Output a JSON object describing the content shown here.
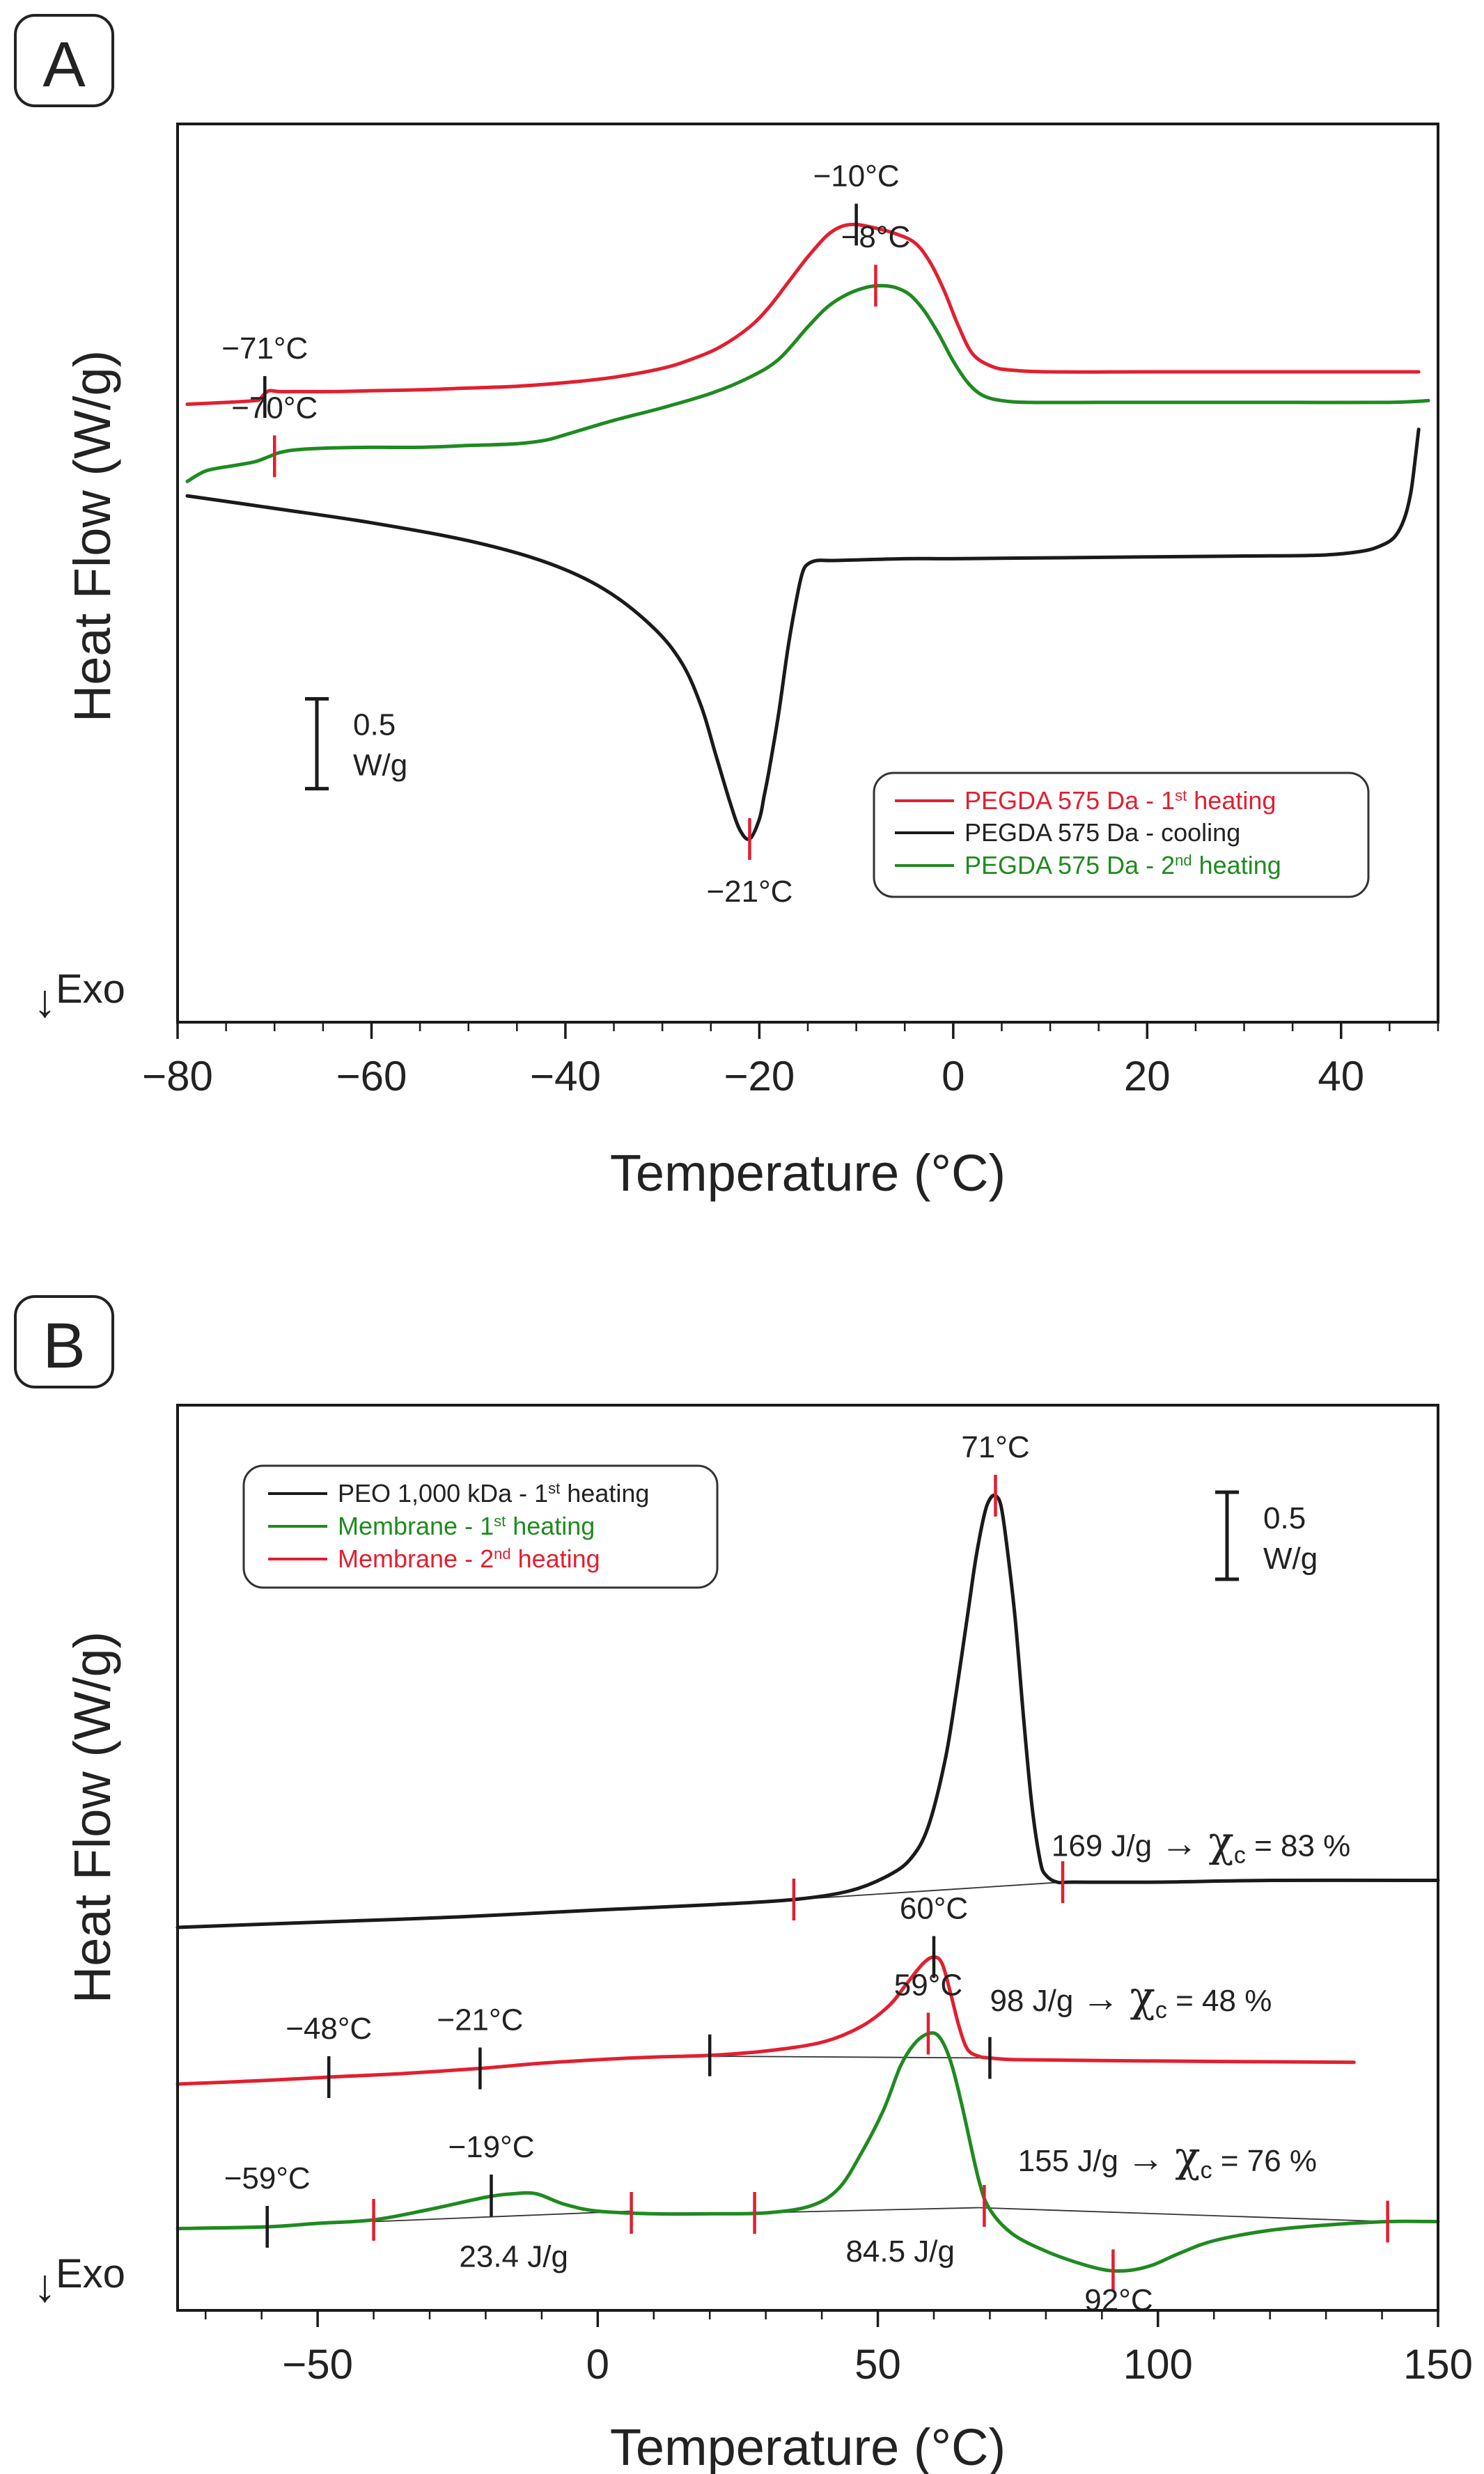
{
  "colors": {
    "red": "#e02030",
    "black": "#1a1a1a",
    "green": "#1f8a1f"
  },
  "chart_data": [
    {
      "id": "A",
      "type": "line",
      "panel_label": "A",
      "xlabel": "Temperature (°C)",
      "ylabel": "Heat Flow (W/g)",
      "exo_label": "Exo",
      "xlim": [
        -80,
        50
      ],
      "xticks": [
        -80,
        -60,
        -40,
        -20,
        0,
        20,
        40
      ],
      "xtick_labels": [
        "−80",
        "−60",
        "−40",
        "−20",
        "0",
        "20",
        "40"
      ],
      "ylim": [
        -1.6,
        3.4
      ],
      "scale_bar": {
        "value": 0.5,
        "label_value": "0.5",
        "label_unit": "W/g",
        "y0": -0.3
      },
      "series": [
        {
          "name": "PEGDA 575 Da - 1st heating",
          "legend_main": "PEGDA 575 Da - 1",
          "legend_sup": "st",
          "legend_tail": " heating",
          "color": "red",
          "x": [
            -79,
            -75,
            -72,
            -71.5,
            -71,
            -70.5,
            -69.5,
            -68,
            -64,
            -60,
            -55,
            -50,
            -45,
            -40,
            -35,
            -30,
            -27,
            -24,
            -21,
            -19,
            -17,
            -15,
            -13,
            -11.5,
            -10,
            -8,
            -6,
            -4,
            -2.5,
            -1,
            0.5,
            2,
            4,
            6,
            10,
            20,
            30,
            40,
            48
          ],
          "values": [
            1.84,
            1.85,
            1.86,
            1.87,
            1.9,
            1.915,
            1.91,
            1.91,
            1.91,
            1.915,
            1.92,
            1.93,
            1.94,
            1.96,
            1.99,
            2.04,
            2.09,
            2.16,
            2.27,
            2.38,
            2.52,
            2.66,
            2.78,
            2.83,
            2.84,
            2.82,
            2.79,
            2.74,
            2.64,
            2.48,
            2.28,
            2.12,
            2.05,
            2.03,
            2.02,
            2.02,
            2.02,
            2.02,
            2.02
          ]
        },
        {
          "name": "PEGDA 575 Da - cooling",
          "legend_main": "PEGDA 575 Da - cooling",
          "legend_sup": "",
          "legend_tail": "",
          "color": "black",
          "x": [
            -79,
            -70,
            -60,
            -50,
            -42,
            -36,
            -31,
            -28,
            -26,
            -24.5,
            -23,
            -22,
            -21,
            -20,
            -19.5,
            -19,
            -18,
            -17,
            -16,
            -15.5,
            -15,
            -14,
            -12,
            -5,
            0,
            10,
            20,
            30,
            38,
            42,
            44,
            45.5,
            46.5,
            47.2,
            47.7,
            48
          ],
          "values": [
            1.33,
            1.26,
            1.18,
            1.08,
            0.96,
            0.81,
            0.6,
            0.4,
            0.16,
            -0.11,
            -0.38,
            -0.53,
            -0.58,
            -0.47,
            -0.34,
            -0.2,
            0.12,
            0.5,
            0.8,
            0.91,
            0.95,
            0.97,
            0.97,
            0.98,
            0.98,
            0.985,
            0.99,
            0.995,
            1.0,
            1.02,
            1.05,
            1.1,
            1.2,
            1.35,
            1.56,
            1.7
          ]
        },
        {
          "name": "PEGDA 575 Da - 2nd heating",
          "legend_main": "PEGDA 575 Da - 2",
          "legend_sup": "nd",
          "legend_tail": " heating",
          "color": "green",
          "x": [
            -79,
            -77,
            -74,
            -72,
            -70.5,
            -69.5,
            -68,
            -65,
            -60,
            -55,
            -50,
            -45,
            -42,
            -40,
            -35,
            -30,
            -25,
            -21,
            -18,
            -15,
            -13,
            -11,
            -9,
            -7.5,
            -6,
            -4.5,
            -3,
            -1.5,
            0,
            1.5,
            3,
            5,
            8,
            15,
            25,
            35,
            45,
            49
          ],
          "values": [
            1.41,
            1.47,
            1.5,
            1.52,
            1.55,
            1.57,
            1.585,
            1.595,
            1.6,
            1.6,
            1.61,
            1.62,
            1.64,
            1.67,
            1.75,
            1.82,
            1.9,
            1.99,
            2.09,
            2.27,
            2.38,
            2.45,
            2.49,
            2.5,
            2.49,
            2.45,
            2.36,
            2.23,
            2.08,
            1.96,
            1.89,
            1.86,
            1.85,
            1.85,
            1.85,
            1.85,
            1.85,
            1.86
          ]
        }
      ],
      "annotations": [
        {
          "text": "−10°C",
          "x": -10,
          "y": 2.84,
          "color": "black",
          "pos": "above"
        },
        {
          "text": "−71°C",
          "x": -71,
          "y": 1.88,
          "color": "black",
          "pos": "above"
        },
        {
          "text": "−8°C",
          "x": -8,
          "y": 2.5,
          "color": "red",
          "pos": "above"
        },
        {
          "text": "−70°C",
          "x": -70,
          "y": 1.55,
          "color": "red",
          "pos": "above"
        },
        {
          "text": "−21°C",
          "x": -21,
          "y": -0.58,
          "color": "red",
          "pos": "below"
        }
      ],
      "legend_position": "lower-right"
    },
    {
      "id": "B",
      "type": "line",
      "panel_label": "B",
      "xlabel": "Temperature (°C)",
      "ylabel": "Heat Flow (W/g)",
      "exo_label": "Exo",
      "xlim": [
        -75,
        150
      ],
      "xticks": [
        -50,
        0,
        50,
        100,
        150
      ],
      "xtick_labels": [
        "−50",
        "0",
        "50",
        "100",
        "150"
      ],
      "ylim": [
        -2.2,
        3.0
      ],
      "scale_bar": {
        "value": 0.5,
        "label_value": "0.5",
        "label_unit": "W/g",
        "y0": 2.0
      },
      "series": [
        {
          "name": "PEO 1,000 kDa - 1st heating",
          "legend_main": "PEO 1,000 kDa - 1",
          "legend_sup": "st",
          "legend_tail": " heating",
          "color": "black",
          "x": [
            -75,
            -50,
            -25,
            0,
            20,
            35,
            45,
            52,
            56,
            59,
            62,
            64,
            66,
            67.5,
            69,
            70,
            71,
            72,
            73,
            74.5,
            76,
            77.5,
            79,
            80,
            82,
            85,
            100,
            120,
            150
          ],
          "values": [
            0.0,
            0.03,
            0.06,
            0.1,
            0.13,
            0.16,
            0.21,
            0.3,
            0.4,
            0.58,
            0.96,
            1.35,
            1.79,
            2.12,
            2.37,
            2.46,
            2.48,
            2.42,
            2.2,
            1.78,
            1.21,
            0.7,
            0.38,
            0.3,
            0.26,
            0.26,
            0.26,
            0.27,
            0.27
          ]
        },
        {
          "name": "Membrane - 1st heating",
          "legend_main": "Membrane - 1",
          "legend_sup": "st",
          "legend_tail": " heating",
          "color": "green",
          "x": [
            -75,
            -59,
            -50,
            -40,
            -30,
            -20,
            -15,
            -11,
            -6,
            0,
            10,
            20,
            30,
            38,
            43,
            47,
            51,
            54,
            56.5,
            59,
            61,
            63,
            65,
            68,
            70,
            74,
            80,
            86,
            91,
            95,
            99,
            104,
            110,
            120,
            130,
            141,
            150
          ],
          "values": [
            -1.73,
            -1.72,
            -1.7,
            -1.68,
            -1.62,
            -1.55,
            -1.53,
            -1.53,
            -1.59,
            -1.63,
            -1.645,
            -1.645,
            -1.64,
            -1.6,
            -1.5,
            -1.3,
            -1.05,
            -0.8,
            -0.67,
            -0.61,
            -0.63,
            -0.77,
            -1.02,
            -1.45,
            -1.62,
            -1.76,
            -1.86,
            -1.93,
            -1.97,
            -1.97,
            -1.94,
            -1.87,
            -1.8,
            -1.74,
            -1.71,
            -1.69,
            -1.69
          ]
        },
        {
          "name": "Membrane - 2nd heating",
          "legend_main": "Membrane - 2",
          "legend_sup": "nd",
          "legend_tail": " heating",
          "color": "red",
          "x": [
            -75,
            -60,
            -48,
            -35,
            -21,
            -10,
            0,
            10,
            20,
            30,
            40,
            47,
            52,
            55,
            58,
            60,
            61.5,
            63,
            64.5,
            66,
            68,
            70,
            75,
            90,
            110,
            135
          ],
          "values": [
            -0.9,
            -0.88,
            -0.86,
            -0.84,
            -0.81,
            -0.78,
            -0.76,
            -0.745,
            -0.735,
            -0.71,
            -0.66,
            -0.57,
            -0.45,
            -0.33,
            -0.21,
            -0.17,
            -0.21,
            -0.38,
            -0.57,
            -0.7,
            -0.74,
            -0.75,
            -0.76,
            -0.765,
            -0.77,
            -0.775
          ]
        }
      ],
      "baselines": [
        {
          "x": [
            35,
            83
          ],
          "y": [
            0.16,
            0.26
          ]
        },
        {
          "x": [
            20,
            70
          ],
          "y": [
            -0.74,
            -0.75
          ]
        },
        {
          "x": [
            -40,
            6
          ],
          "y": [
            -1.69,
            -1.63
          ]
        },
        {
          "x": [
            28,
            68
          ],
          "y": [
            -1.64,
            -1.61
          ]
        },
        {
          "x": [
            68,
            141
          ],
          "y": [
            -1.61,
            -1.69
          ]
        }
      ],
      "markers": [
        {
          "x": 35,
          "y": 0.16,
          "color": "red"
        },
        {
          "x": 83,
          "y": 0.26,
          "color": "red"
        },
        {
          "x": 71,
          "y": 2.48,
          "color": "red"
        },
        {
          "x": -48,
          "y": -0.86,
          "color": "black"
        },
        {
          "x": -21,
          "y": -0.81,
          "color": "black"
        },
        {
          "x": 20,
          "y": -0.735,
          "color": "black"
        },
        {
          "x": 60,
          "y": -0.17,
          "color": "black"
        },
        {
          "x": 70,
          "y": -0.75,
          "color": "black"
        },
        {
          "x": -59,
          "y": -1.72,
          "color": "black"
        },
        {
          "x": -19,
          "y": -1.54,
          "color": "black"
        },
        {
          "x": -40,
          "y": -1.68,
          "color": "red"
        },
        {
          "x": 6,
          "y": -1.64,
          "color": "red"
        },
        {
          "x": 28,
          "y": -1.64,
          "color": "red"
        },
        {
          "x": 59,
          "y": -0.61,
          "color": "red"
        },
        {
          "x": 69,
          "y": -1.6,
          "color": "red"
        },
        {
          "x": 92,
          "y": -1.97,
          "color": "red"
        },
        {
          "x": 141,
          "y": -1.69,
          "color": "red"
        }
      ],
      "annotations": [
        {
          "text": "71°C",
          "x": 71,
          "y": 2.48,
          "pos": "above"
        },
        {
          "text": "60°C",
          "x": 60,
          "y": -0.17,
          "pos": "above"
        },
        {
          "text": "−48°C",
          "x": -48,
          "y": -0.86,
          "pos": "above"
        },
        {
          "text": "−21°C",
          "x": -21,
          "y": -0.81,
          "pos": "above"
        },
        {
          "text": "59°C",
          "x": 59,
          "y": -0.61,
          "pos": "above"
        },
        {
          "text": "−19°C",
          "x": -19,
          "y": -1.54,
          "pos": "above"
        },
        {
          "text": "−59°C",
          "x": -59,
          "y": -1.72,
          "pos": "above"
        },
        {
          "text": "23.4 J/g",
          "x": -15,
          "y": -1.95,
          "pos": "at"
        },
        {
          "text": "84.5 J/g",
          "x": 54,
          "y": -1.92,
          "pos": "at"
        },
        {
          "text": "92°C",
          "x": 93,
          "y": -2.2,
          "pos": "at"
        }
      ],
      "enthalpy_labels": [
        {
          "prefix": "169 J/g",
          "arrow": "→",
          "chi": "χ",
          "sub": "c",
          "suffix": "= 83 %",
          "x": 81,
          "y": 0.41
        },
        {
          "prefix": "98 J/g",
          "arrow": "→",
          "chi": "χ",
          "sub": "c",
          "suffix": "= 48 %",
          "x": 70,
          "y": -0.48
        },
        {
          "prefix": "155 J/g",
          "arrow": "→",
          "chi": "χ",
          "sub": "c",
          "suffix": "= 76 %",
          "x": 75,
          "y": -1.4
        }
      ],
      "legend_position": "upper-left"
    }
  ]
}
